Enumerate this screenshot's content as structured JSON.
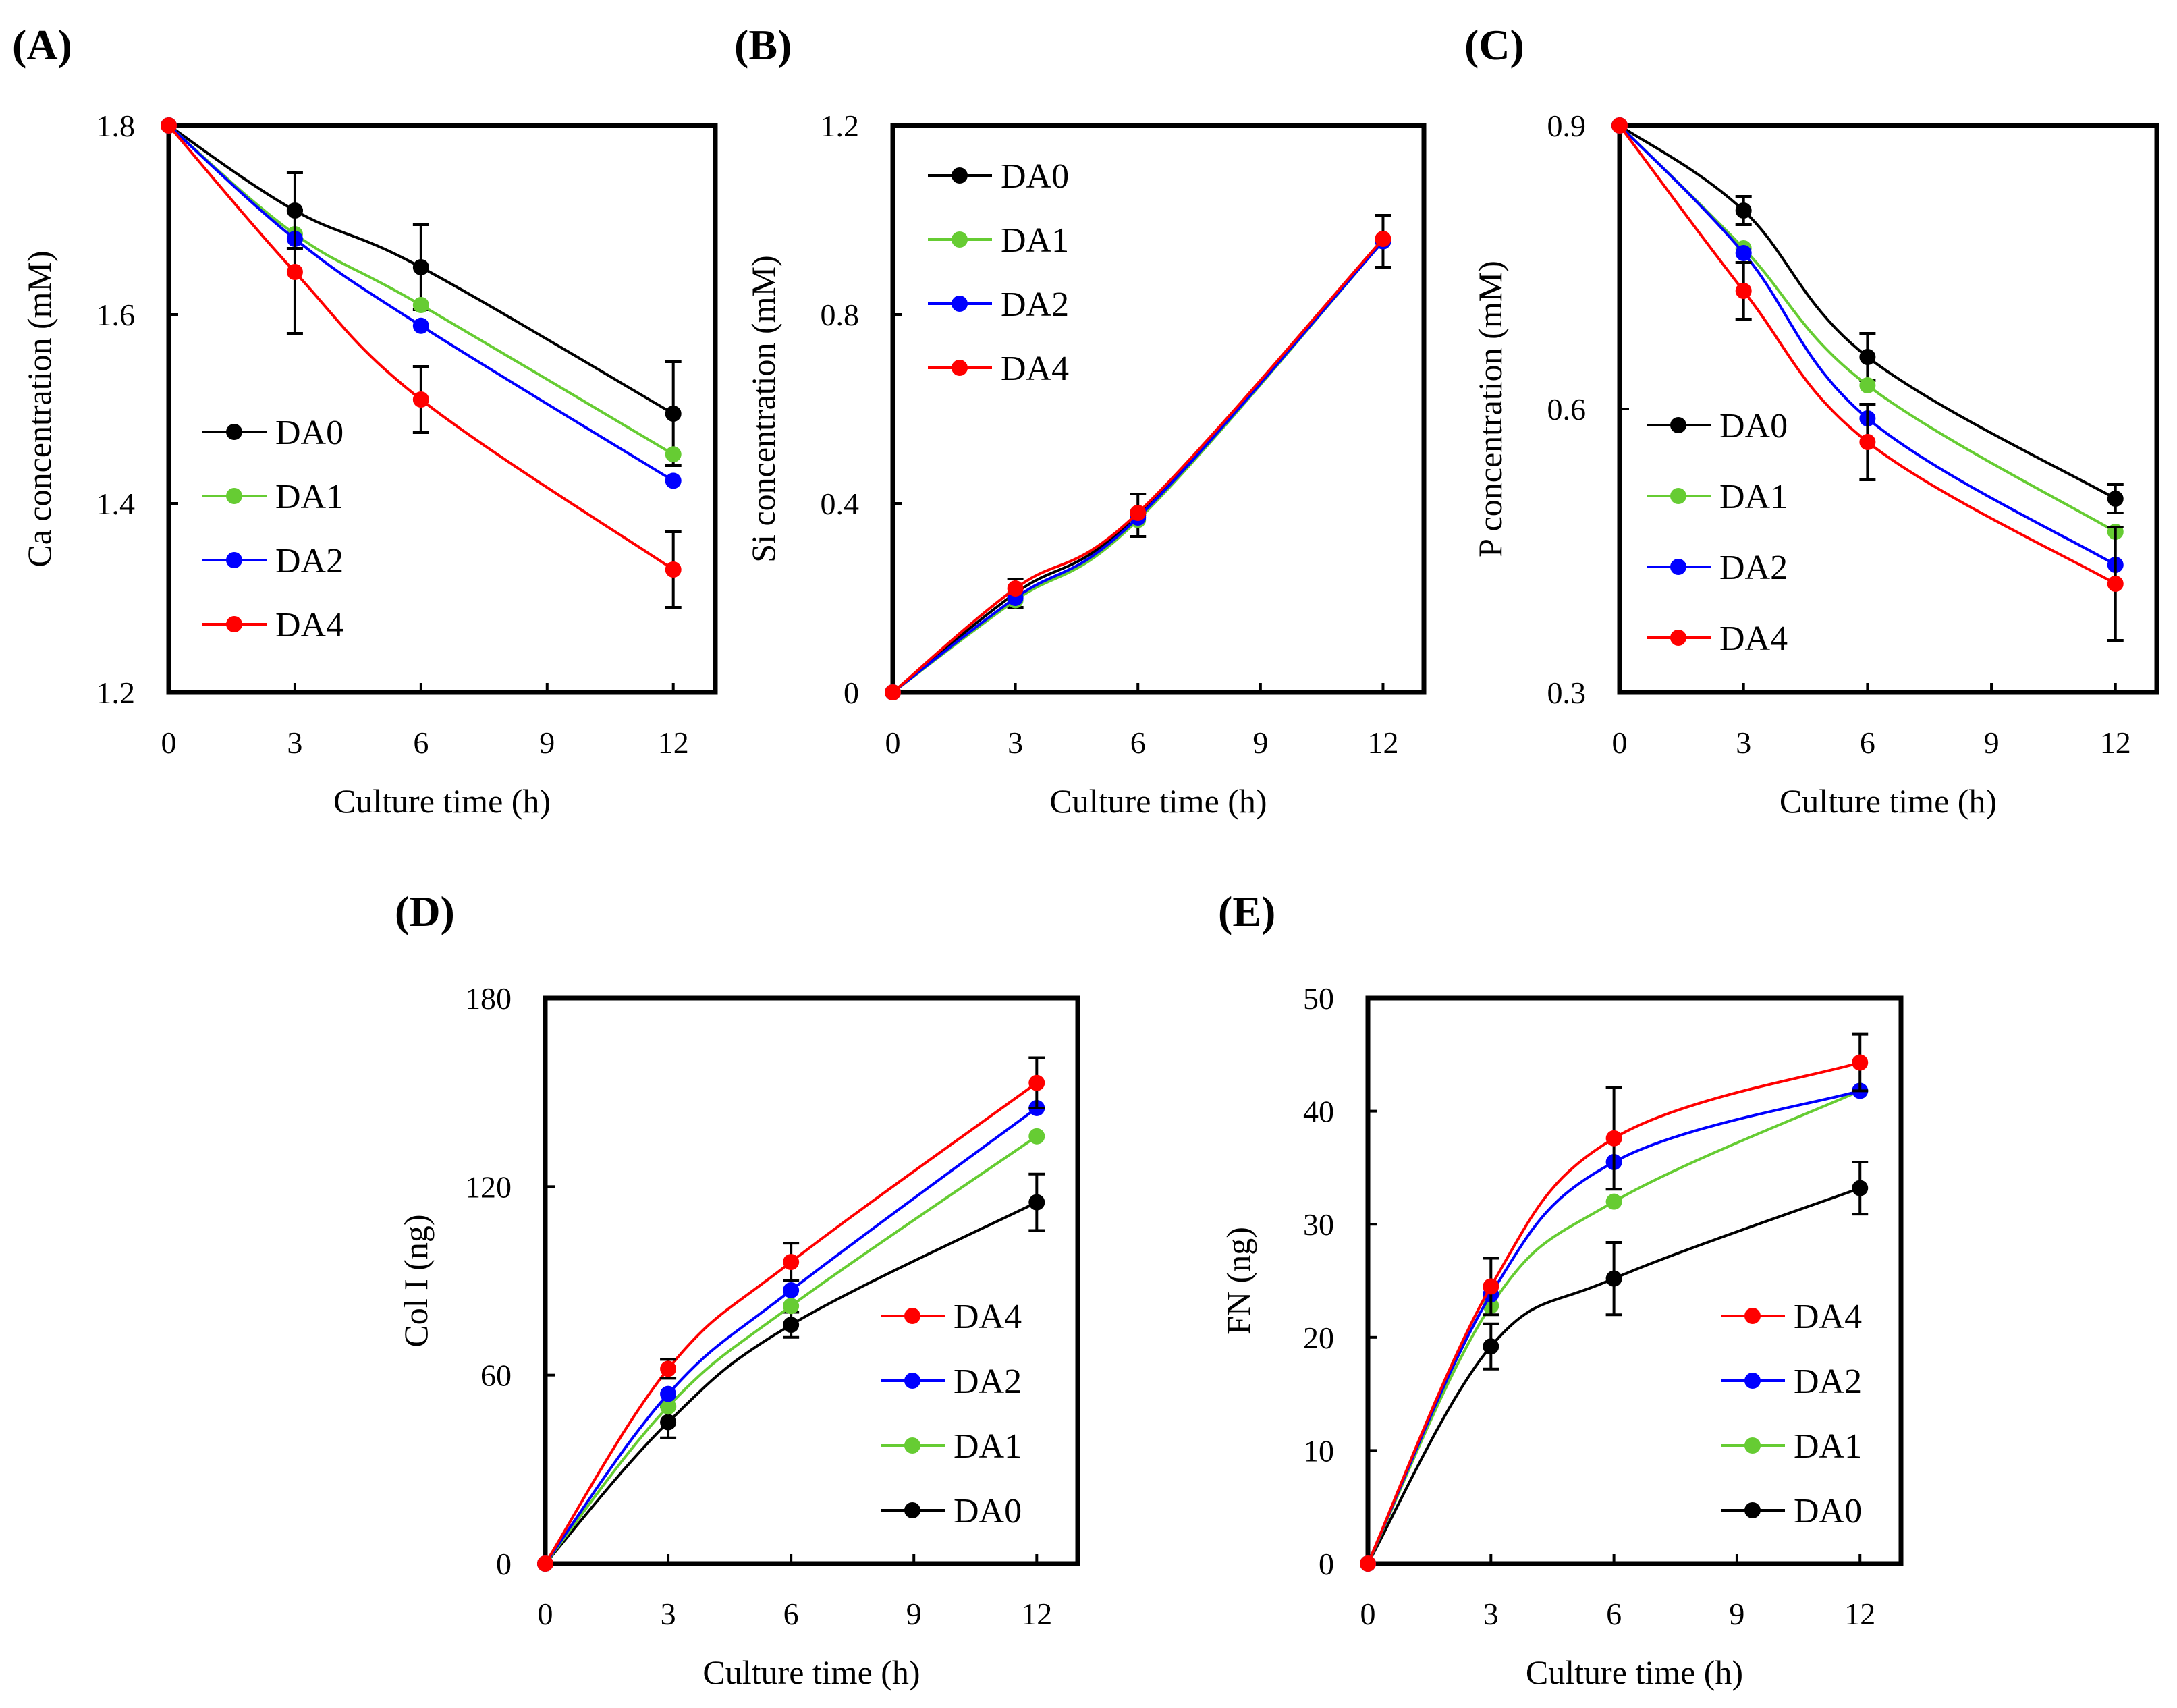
{
  "figure": {
    "background": "#ffffff",
    "colors": {
      "DA0": "#000000",
      "DA1": "#66cc33",
      "DA2": "#0000ff",
      "DA4": "#ff0000"
    }
  },
  "chart_data": [
    {
      "id": "A",
      "panel_label": "(A)",
      "type": "line",
      "xlabel": "Culture time (h)",
      "ylabel": "Ca concentration (mM)",
      "x": [
        0,
        3,
        6,
        12
      ],
      "xticks": [
        0,
        3,
        6,
        9,
        12
      ],
      "xlim": [
        0,
        13
      ],
      "yticks": [
        1.2,
        1.4,
        1.6,
        1.8
      ],
      "ytick_labels": [
        "1.2",
        "1.4",
        "1.6",
        "1.8"
      ],
      "ylim": [
        1.2,
        1.8
      ],
      "legend": {
        "order": [
          "DA0",
          "DA1",
          "DA2",
          "DA4"
        ],
        "position": "lower-left"
      },
      "series": [
        {
          "name": "DA0",
          "color": "#000000",
          "values": [
            1.8,
            1.71,
            1.65,
            1.495
          ],
          "errors": [
            0,
            0.04,
            0.045,
            0.055
          ]
        },
        {
          "name": "DA1",
          "color": "#66cc33",
          "values": [
            1.8,
            1.685,
            1.61,
            1.452
          ],
          "errors": [
            0,
            0,
            0,
            0
          ]
        },
        {
          "name": "DA2",
          "color": "#0000ff",
          "values": [
            1.8,
            1.68,
            1.588,
            1.424
          ],
          "errors": [
            0,
            0,
            0,
            0
          ]
        },
        {
          "name": "DA4",
          "color": "#ff0000",
          "values": [
            1.8,
            1.645,
            1.51,
            1.33
          ],
          "errors": [
            0,
            0.065,
            0.035,
            0.04
          ]
        }
      ]
    },
    {
      "id": "B",
      "panel_label": "(B)",
      "type": "line",
      "xlabel": "Culture time (h)",
      "ylabel": "Si concentration (mM)",
      "x": [
        0,
        3,
        6,
        12
      ],
      "xticks": [
        0,
        3,
        6,
        9,
        12
      ],
      "xlim": [
        0,
        13
      ],
      "yticks": [
        0,
        0.4,
        0.8,
        1.2
      ],
      "ytick_labels": [
        "0",
        "0.4",
        "0.8",
        "1.2"
      ],
      "ylim": [
        0,
        1.2
      ],
      "legend": {
        "order": [
          "DA0",
          "DA1",
          "DA2",
          "DA4"
        ],
        "position": "upper-left"
      },
      "series": [
        {
          "name": "DA0",
          "color": "#000000",
          "values": [
            0,
            0.21,
            0.375,
            0.955
          ],
          "errors": [
            0,
            0.03,
            0.045,
            0.055
          ]
        },
        {
          "name": "DA1",
          "color": "#66cc33",
          "values": [
            0,
            0.195,
            0.365,
            0.955
          ],
          "errors": [
            0,
            0,
            0,
            0
          ]
        },
        {
          "name": "DA2",
          "color": "#0000ff",
          "values": [
            0,
            0.2,
            0.37,
            0.955
          ],
          "errors": [
            0,
            0,
            0,
            0
          ]
        },
        {
          "name": "DA4",
          "color": "#ff0000",
          "values": [
            0,
            0.22,
            0.38,
            0.96
          ],
          "errors": [
            0,
            0,
            0,
            0
          ]
        }
      ]
    },
    {
      "id": "C",
      "panel_label": "(C)",
      "type": "line",
      "xlabel": "Culture time (h)",
      "ylabel": "P concentration (mM)",
      "x": [
        0,
        3,
        6,
        12
      ],
      "xticks": [
        0,
        3,
        6,
        9,
        12
      ],
      "xlim": [
        0,
        13
      ],
      "yticks": [
        0.3,
        0.6,
        0.9
      ],
      "ytick_labels": [
        "0.3",
        "0.6",
        "0.9"
      ],
      "ylim": [
        0.3,
        0.9
      ],
      "legend": {
        "order": [
          "DA0",
          "DA1",
          "DA2",
          "DA4"
        ],
        "position": "lower-left"
      },
      "series": [
        {
          "name": "DA0",
          "color": "#000000",
          "values": [
            0.9,
            0.81,
            0.655,
            0.505
          ],
          "errors": [
            0,
            0.015,
            0.025,
            0.015
          ]
        },
        {
          "name": "DA1",
          "color": "#66cc33",
          "values": [
            0.9,
            0.77,
            0.625,
            0.47
          ],
          "errors": [
            0,
            0,
            0,
            0
          ]
        },
        {
          "name": "DA2",
          "color": "#0000ff",
          "values": [
            0.9,
            0.765,
            0.59,
            0.435
          ],
          "errors": [
            0,
            0,
            0,
            0
          ]
        },
        {
          "name": "DA4",
          "color": "#ff0000",
          "values": [
            0.9,
            0.725,
            0.565,
            0.415
          ],
          "errors": [
            0,
            0.03,
            0.04,
            0.06
          ]
        }
      ]
    },
    {
      "id": "D",
      "panel_label": "(D)",
      "type": "line",
      "xlabel": "Culture time (h)",
      "ylabel": "Col I (ng)",
      "x": [
        0,
        3,
        6,
        12
      ],
      "xticks": [
        0,
        3,
        6,
        9,
        12
      ],
      "xlim": [
        0,
        13
      ],
      "yticks": [
        0,
        60,
        120,
        180
      ],
      "ytick_labels": [
        "0",
        "60",
        "120",
        "180"
      ],
      "ylim": [
        0,
        180
      ],
      "legend": {
        "order": [
          "DA4",
          "DA2",
          "DA1",
          "DA0"
        ],
        "position": "lower-right"
      },
      "series": [
        {
          "name": "DA0",
          "color": "#000000",
          "values": [
            0,
            45,
            76,
            115
          ],
          "errors": [
            0,
            5,
            4,
            9
          ]
        },
        {
          "name": "DA1",
          "color": "#66cc33",
          "values": [
            0,
            50,
            82,
            136
          ],
          "errors": [
            0,
            0,
            0,
            0
          ]
        },
        {
          "name": "DA2",
          "color": "#0000ff",
          "values": [
            0,
            54,
            87,
            145
          ],
          "errors": [
            0,
            0,
            0,
            0
          ]
        },
        {
          "name": "DA4",
          "color": "#ff0000",
          "values": [
            0,
            62,
            96,
            153
          ],
          "errors": [
            0,
            3,
            6,
            8
          ]
        }
      ]
    },
    {
      "id": "E",
      "panel_label": "(E)",
      "type": "line",
      "xlabel": "Culture time (h)",
      "ylabel": "FN (ng)",
      "x": [
        0,
        3,
        6,
        12
      ],
      "xticks": [
        0,
        3,
        6,
        9,
        12
      ],
      "xlim": [
        0,
        13
      ],
      "yticks": [
        0,
        10,
        20,
        30,
        40,
        50
      ],
      "ytick_labels": [
        "0",
        "10",
        "20",
        "30",
        "40",
        "50"
      ],
      "ylim": [
        0,
        50
      ],
      "legend": {
        "order": [
          "DA4",
          "DA2",
          "DA1",
          "DA0"
        ],
        "position": "lower-right"
      },
      "series": [
        {
          "name": "DA0",
          "color": "#000000",
          "values": [
            0,
            19.2,
            25.2,
            33.2
          ],
          "errors": [
            0,
            2,
            3.2,
            2.3
          ]
        },
        {
          "name": "DA1",
          "color": "#66cc33",
          "values": [
            0,
            22.8,
            32,
            41.8
          ],
          "errors": [
            0,
            0,
            0,
            0
          ]
        },
        {
          "name": "DA2",
          "color": "#0000ff",
          "values": [
            0,
            23.8,
            35.5,
            41.8
          ],
          "errors": [
            0,
            0,
            0,
            0
          ]
        },
        {
          "name": "DA4",
          "color": "#ff0000",
          "values": [
            0,
            24.5,
            37.6,
            44.3
          ],
          "errors": [
            0,
            2.5,
            4.5,
            2.5
          ]
        }
      ]
    }
  ]
}
